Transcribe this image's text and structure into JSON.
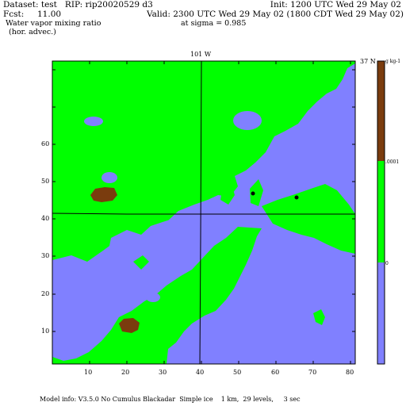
{
  "header": {
    "dataset": "Dataset: test   RIP: rip20020529 d3",
    "init": "Init: 1200 UTC Wed 29 May 02",
    "fcst": "Fcst:     11.00",
    "valid": "Valid: 2300 UTC Wed 29 May 02 (1800 CDT Wed 29 May 02)",
    "field": "Water vapor mixing ratio",
    "level": "at sigma = 0.985",
    "advec": "(hor. advec.)"
  },
  "map": {
    "lon_label": "101 W",
    "lat_label": "37 N",
    "x_ticks": [
      "10",
      "20",
      "30",
      "40",
      "50",
      "60",
      "70",
      "80"
    ],
    "y_ticks": [
      "10",
      "20",
      "30",
      "40",
      "50",
      "60"
    ],
    "colors": {
      "low": "#8080ff",
      "mid": "#00ff00",
      "high": "#7a3c0e",
      "line": "#000000"
    }
  },
  "colorbar": {
    "unit": "g kg-1",
    "labels": [
      "0",
      ".0001"
    ],
    "colors": [
      "#8080ff",
      "#00ff00",
      "#7a3c0e"
    ]
  },
  "footer": {
    "model_info": "Model info: V3.5.0 No Cumulus Blackadar  Simple ice    1 km,  29 levels,     3 sec"
  }
}
